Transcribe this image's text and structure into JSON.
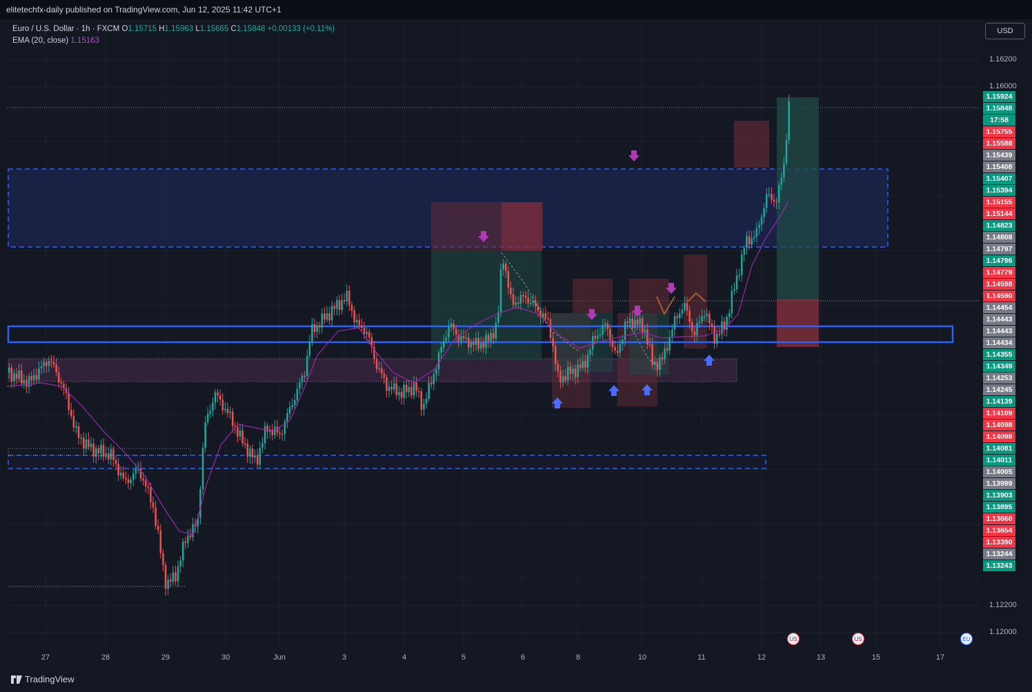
{
  "topbar": {
    "publisher_line": "elitetechfx-daily published on TradingView.com, Jun 12, 2025 11:42 UTC+1"
  },
  "legend": {
    "symbol": "Euro / U.S. Dollar · 1h · FXCM",
    "o_label": "O",
    "o_value": "1.15715",
    "h_label": "H",
    "h_value": "1.15963",
    "l_label": "L",
    "l_value": "1.15665",
    "c_label": "C",
    "c_value": "1.15848",
    "change": "+0.00133 (+0.11%)",
    "ema_label": "EMA (20, close)",
    "ema_value": "1.15163"
  },
  "currency_button": "USD",
  "price_axis": {
    "ticks": [
      "1.16200",
      "1.16000",
      "1.12200",
      "1.12000"
    ],
    "tags": [
      {
        "text": "1.15924",
        "color": "#089981"
      },
      {
        "text": "1.15848",
        "color": "#089981"
      },
      {
        "text": "17:58",
        "color": "#089981"
      },
      {
        "text": "1.15755",
        "color": "#f23645"
      },
      {
        "text": "1.15588",
        "color": "#f23645"
      },
      {
        "text": "1.15439",
        "color": "#787b86"
      },
      {
        "text": "1.15408",
        "color": "#787b86"
      },
      {
        "text": "1.15407",
        "color": "#089981"
      },
      {
        "text": "1.15394",
        "color": "#089981"
      },
      {
        "text": "1.15155",
        "color": "#f23645"
      },
      {
        "text": "1.15144",
        "color": "#f23645"
      },
      {
        "text": "1.14823",
        "color": "#089981"
      },
      {
        "text": "1.14808",
        "color": "#787b86"
      },
      {
        "text": "1.14797",
        "color": "#787b86"
      },
      {
        "text": "1.14796",
        "color": "#089981"
      },
      {
        "text": "1.14779",
        "color": "#f23645"
      },
      {
        "text": "1.14598",
        "color": "#f23645"
      },
      {
        "text": "1.14590",
        "color": "#f23645"
      },
      {
        "text": "1.14454",
        "color": "#787b86"
      },
      {
        "text": "1.14443",
        "color": "#787b86"
      },
      {
        "text": "1.14443",
        "color": "#787b86"
      },
      {
        "text": "1.14434",
        "color": "#787b86"
      },
      {
        "text": "1.14355",
        "color": "#089981"
      },
      {
        "text": "1.14349",
        "color": "#089981"
      },
      {
        "text": "1.14253",
        "color": "#787b86"
      },
      {
        "text": "1.14245",
        "color": "#787b86"
      },
      {
        "text": "1.14139",
        "color": "#089981"
      },
      {
        "text": "1.14109",
        "color": "#f23645"
      },
      {
        "text": "1.14098",
        "color": "#f23645"
      },
      {
        "text": "1.14098",
        "color": "#f23645"
      },
      {
        "text": "1.14081",
        "color": "#089981"
      },
      {
        "text": "1.14011",
        "color": "#089981"
      },
      {
        "text": "1.14005",
        "color": "#787b86"
      },
      {
        "text": "1.13999",
        "color": "#787b86"
      },
      {
        "text": "1.13903",
        "color": "#089981"
      },
      {
        "text": "1.13895",
        "color": "#089981"
      },
      {
        "text": "1.13660",
        "color": "#f23645"
      },
      {
        "text": "1.13654",
        "color": "#f23645"
      },
      {
        "text": "1.13390",
        "color": "#f23645"
      },
      {
        "text": "1.13244",
        "color": "#787b86"
      },
      {
        "text": "1.13243",
        "color": "#089981"
      }
    ]
  },
  "time_axis": {
    "labels": [
      "27",
      "28",
      "29",
      "30",
      "Jun",
      "3",
      "4",
      "5",
      "6",
      "8",
      "10",
      "11",
      "12",
      "13",
      "15",
      "17"
    ]
  },
  "events": [
    "US",
    "US",
    "EU"
  ],
  "brand": "TradingView",
  "colors": {
    "up": "#26a69a",
    "down": "#ef5350",
    "ema": "#9c27b0",
    "zone": "#2962ff",
    "sell_arrow": "#b03ab5",
    "buy_arrow": "#4a6cf7"
  }
}
